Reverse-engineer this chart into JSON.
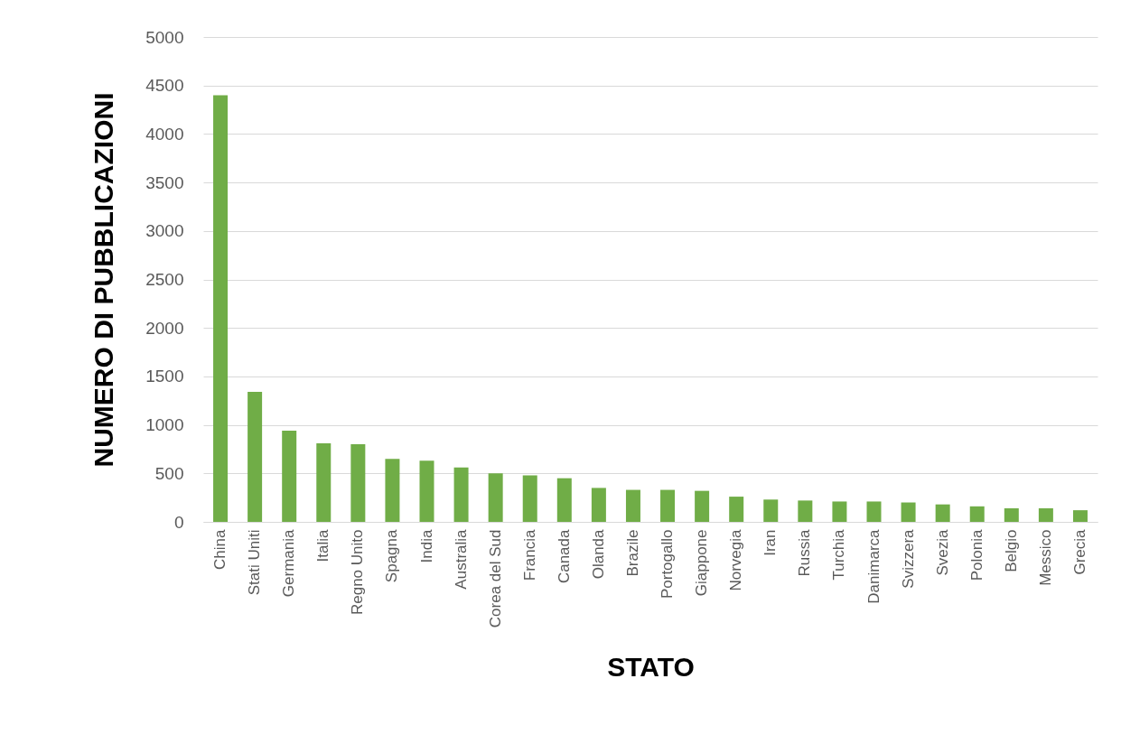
{
  "chart_data": {
    "type": "bar",
    "xlabel": "STATO",
    "ylabel": "NUMERO DI PUBBLICAZIONI",
    "categories": [
      "China",
      "Stati Uniti",
      "Germania",
      "Italia",
      "Regno Unito",
      "Spagna",
      "India",
      "Australia",
      "Corea del Sud",
      "Francia",
      "Canada",
      "Olanda",
      "Brazile",
      "Portogallo",
      "Giappone",
      "Norvegia",
      "Iran",
      "Russia",
      "Turchia",
      "Danimarca",
      "Svizzera",
      "Svezia",
      "Polonia",
      "Belgio",
      "Messico",
      "Grecia"
    ],
    "values": [
      4400,
      1340,
      940,
      810,
      800,
      650,
      630,
      560,
      500,
      480,
      450,
      350,
      330,
      330,
      320,
      260,
      230,
      220,
      210,
      210,
      200,
      180,
      160,
      140,
      140,
      120
    ],
    "color": "#70ad47",
    "ylim": [
      0,
      5000
    ],
    "yticks": [
      0,
      500,
      1000,
      1500,
      2000,
      2500,
      3000,
      3500,
      4000,
      4500,
      5000
    ],
    "grid": "y"
  }
}
